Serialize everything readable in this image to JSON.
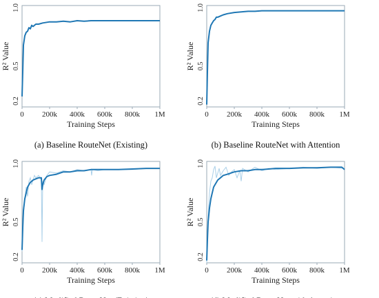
{
  "colors": {
    "line": "#1f77b4",
    "raw": "#a9cfe8",
    "frame": "#9aaab5",
    "grid": "#e6eaee"
  },
  "chart_data": [
    {
      "type": "line",
      "caption": "(a) Baseline RouteNet (Existing)",
      "xlabel": "Training Steps",
      "ylabel": "R² Value",
      "xticks": [
        "0",
        "200k",
        "400k",
        "600k",
        "800k",
        "1M"
      ],
      "yticks": [
        "0.2",
        "0.5",
        "1.0"
      ],
      "xlim": [
        0,
        1000000
      ],
      "ylim": [
        0.15,
        1.02
      ],
      "raw": [],
      "series": [
        {
          "x": [
            0,
            5000,
            10000,
            20000,
            30000,
            40000,
            50000,
            60000,
            70000,
            80000,
            100000,
            120000,
            150000,
            200000,
            250000,
            300000,
            350000,
            400000,
            450000,
            500000,
            600000,
            700000,
            800000,
            900000,
            1000000
          ],
          "y": [
            0.24,
            0.45,
            0.68,
            0.76,
            0.79,
            0.8,
            0.83,
            0.82,
            0.85,
            0.84,
            0.86,
            0.86,
            0.87,
            0.88,
            0.88,
            0.885,
            0.88,
            0.89,
            0.885,
            0.89,
            0.89,
            0.89,
            0.89,
            0.89,
            0.89
          ]
        }
      ]
    },
    {
      "type": "line",
      "caption": "(b) Baseline RouteNet with Attention",
      "xlabel": "Training Steps",
      "ylabel": "R² Value",
      "xticks": [
        "0",
        "200k",
        "400k",
        "600k",
        "800k",
        "1M"
      ],
      "yticks": [
        "0.2",
        "0.5",
        "1.0"
      ],
      "xlim": [
        0,
        1000000
      ],
      "ylim": [
        0.15,
        1.02
      ],
      "raw": [],
      "series": [
        {
          "x": [
            0,
            5000,
            10000,
            20000,
            30000,
            40000,
            50000,
            60000,
            70000,
            80000,
            100000,
            120000,
            150000,
            200000,
            250000,
            300000,
            350000,
            400000,
            450000,
            500000,
            600000,
            700000,
            800000,
            900000,
            1000000
          ],
          "y": [
            0.17,
            0.45,
            0.7,
            0.8,
            0.85,
            0.87,
            0.89,
            0.9,
            0.92,
            0.92,
            0.93,
            0.94,
            0.95,
            0.96,
            0.965,
            0.97,
            0.97,
            0.975,
            0.975,
            0.975,
            0.975,
            0.975,
            0.975,
            0.975,
            0.975
          ]
        }
      ]
    },
    {
      "type": "line",
      "caption": "(c) Modified RouteNet (Existing)",
      "xlabel": "Training Steps",
      "ylabel": "R² Value",
      "xticks": [
        "0",
        "200k",
        "400k",
        "600k",
        "800k",
        "1M"
      ],
      "yticks": [
        "0.2",
        "0.5",
        "1.0"
      ],
      "xlim": [
        0,
        1000000
      ],
      "ylim": [
        0.15,
        1.02
      ],
      "raw": [
        {
          "x": [
            0,
            5000,
            10000,
            20000,
            30000,
            40000,
            50000,
            60000,
            70000,
            80000,
            90000,
            100000,
            120000,
            140000,
            145000,
            150000,
            160000,
            180000,
            200000,
            250000,
            300000,
            350000,
            400000,
            450000,
            500000,
            505000,
            510000,
            550000,
            600000,
            700000,
            800000,
            900000,
            1000000
          ],
          "y": [
            0.25,
            0.4,
            0.55,
            0.7,
            0.8,
            0.72,
            0.85,
            0.88,
            0.82,
            0.86,
            0.9,
            0.88,
            0.9,
            0.86,
            0.33,
            0.85,
            0.82,
            0.9,
            0.93,
            0.92,
            0.94,
            0.93,
            0.95,
            0.94,
            0.95,
            0.9,
            0.95,
            0.94,
            0.95,
            0.95,
            0.95,
            0.96,
            0.96
          ]
        }
      ],
      "series": [
        {
          "x": [
            0,
            5000,
            10000,
            20000,
            30000,
            40000,
            50000,
            60000,
            70000,
            80000,
            100000,
            120000,
            140000,
            145000,
            150000,
            160000,
            180000,
            200000,
            250000,
            300000,
            350000,
            400000,
            450000,
            500000,
            600000,
            700000,
            800000,
            900000,
            1000000
          ],
          "y": [
            0.26,
            0.45,
            0.6,
            0.7,
            0.75,
            0.8,
            0.82,
            0.84,
            0.85,
            0.86,
            0.87,
            0.88,
            0.88,
            0.78,
            0.82,
            0.86,
            0.89,
            0.9,
            0.91,
            0.93,
            0.93,
            0.94,
            0.94,
            0.95,
            0.95,
            0.95,
            0.955,
            0.96,
            0.96
          ]
        }
      ]
    },
    {
      "type": "line",
      "caption": "(d) Modified RouteNet with Attention",
      "xlabel": "Training Steps",
      "ylabel": "R² Value",
      "xticks": [
        "0",
        "200k",
        "400k",
        "600k",
        "800k",
        "1M"
      ],
      "yticks": [
        "0.2",
        "0.5",
        "1.0"
      ],
      "xlim": [
        0,
        1000000
      ],
      "ylim": [
        0.15,
        1.02
      ],
      "raw": [
        {
          "x": [
            0,
            5000,
            10000,
            20000,
            30000,
            40000,
            50000,
            60000,
            70000,
            80000,
            90000,
            100000,
            120000,
            140000,
            160000,
            180000,
            200000,
            220000,
            240000,
            250000,
            260000,
            300000,
            350000,
            400000,
            450000,
            500000,
            600000,
            700000,
            800000,
            900000,
            1000000
          ],
          "y": [
            0.15,
            0.35,
            0.55,
            0.75,
            0.85,
            0.88,
            0.95,
            0.98,
            0.88,
            0.92,
            0.96,
            0.9,
            0.94,
            0.97,
            0.9,
            0.93,
            0.95,
            0.88,
            0.94,
            0.85,
            0.96,
            0.93,
            0.97,
            0.94,
            0.96,
            0.95,
            0.96,
            0.97,
            0.96,
            0.97,
            0.96
          ]
        }
      ],
      "series": [
        {
          "x": [
            0,
            5000,
            10000,
            20000,
            30000,
            40000,
            50000,
            60000,
            70000,
            80000,
            100000,
            120000,
            150000,
            200000,
            250000,
            300000,
            350000,
            400000,
            450000,
            500000,
            600000,
            700000,
            800000,
            900000,
            980000,
            1000000
          ],
          "y": [
            0.17,
            0.35,
            0.5,
            0.62,
            0.7,
            0.75,
            0.8,
            0.82,
            0.84,
            0.86,
            0.88,
            0.9,
            0.91,
            0.93,
            0.94,
            0.94,
            0.95,
            0.95,
            0.955,
            0.96,
            0.96,
            0.965,
            0.965,
            0.97,
            0.97,
            0.95
          ]
        }
      ]
    }
  ]
}
